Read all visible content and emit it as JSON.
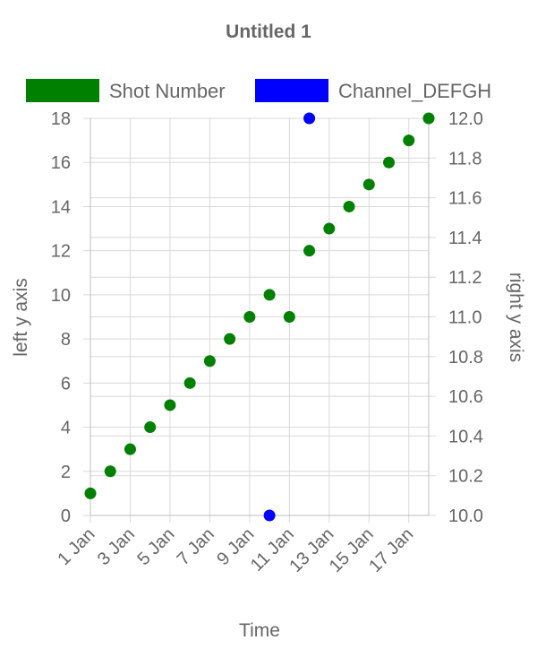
{
  "chart_data": {
    "type": "scatter",
    "title": "Untitled 1",
    "xlabel": "Time",
    "ylabel_left": "left y axis",
    "ylabel_right": "right y axis",
    "x_ticks": [
      "1 Jan",
      "3 Jan",
      "5 Jan",
      "7 Jan",
      "9 Jan",
      "11 Jan",
      "13 Jan",
      "15 Jan",
      "17 Jan"
    ],
    "x_range": [
      "1 Jan",
      "18 Jan"
    ],
    "ylim_left": [
      0,
      18
    ],
    "ylim_right": [
      10.0,
      12.0
    ],
    "y_ticks_left": [
      "0",
      "2",
      "4",
      "6",
      "8",
      "10",
      "12",
      "14",
      "16",
      "18"
    ],
    "y_ticks_right": [
      "10.0",
      "10.2",
      "10.4",
      "10.6",
      "10.8",
      "11.0",
      "11.2",
      "11.4",
      "11.6",
      "11.8",
      "12.0"
    ],
    "grid": true,
    "legend_position": "top",
    "series": [
      {
        "name": "Shot Number",
        "color": "#008000",
        "axis": "left",
        "points": [
          {
            "x": "1 Jan",
            "y": 1
          },
          {
            "x": "2 Jan",
            "y": 2
          },
          {
            "x": "3 Jan",
            "y": 3
          },
          {
            "x": "4 Jan",
            "y": 4
          },
          {
            "x": "5 Jan",
            "y": 5
          },
          {
            "x": "6 Jan",
            "y": 6
          },
          {
            "x": "7 Jan",
            "y": 7
          },
          {
            "x": "8 Jan",
            "y": 8
          },
          {
            "x": "9 Jan",
            "y": 9
          },
          {
            "x": "10 Jan",
            "y": 10
          },
          {
            "x": "11 Jan",
            "y": 9
          },
          {
            "x": "12 Jan",
            "y": 12
          },
          {
            "x": "13 Jan",
            "y": 13
          },
          {
            "x": "14 Jan",
            "y": 14
          },
          {
            "x": "15 Jan",
            "y": 15
          },
          {
            "x": "16 Jan",
            "y": 16
          },
          {
            "x": "17 Jan",
            "y": 17
          },
          {
            "x": "18 Jan",
            "y": 18
          }
        ]
      },
      {
        "name": "Channel_DEFGH",
        "color": "#0000ff",
        "axis": "right",
        "points": [
          {
            "x": "10 Jan",
            "y": 10.0
          },
          {
            "x": "12 Jan",
            "y": 12.0
          }
        ]
      }
    ]
  }
}
